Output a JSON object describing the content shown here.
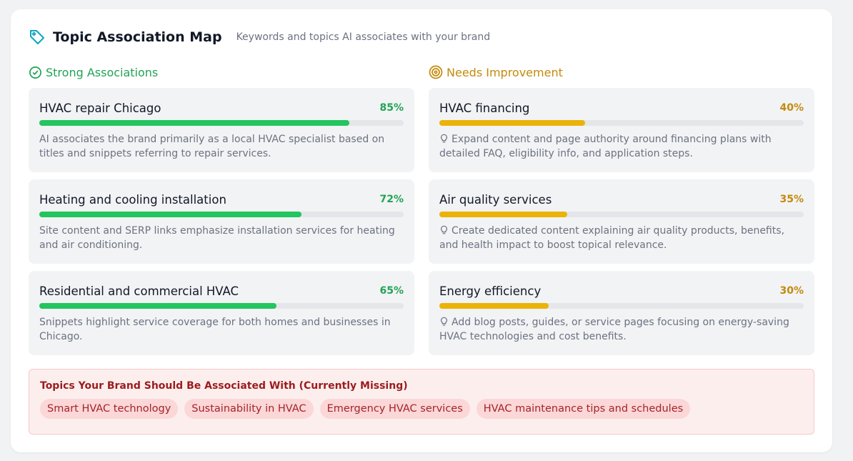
{
  "header": {
    "title": "Topic Association Map",
    "subtitle": "Keywords and topics AI associates with your brand"
  },
  "strong": {
    "title": "Strong Associations",
    "items": [
      {
        "topic": "HVAC repair Chicago",
        "value": 85,
        "value_label": "85%",
        "description": "AI associates the brand primarily as a local HVAC specialist based on titles and snippets referring to repair services."
      },
      {
        "topic": "Heating and cooling installation",
        "value": 72,
        "value_label": "72%",
        "description": "Site content and SERP links emphasize installation services for heating and air conditioning."
      },
      {
        "topic": "Residential and commercial HVAC",
        "value": 65,
        "value_label": "65%",
        "description": "Snippets highlight service coverage for both homes and businesses in Chicago."
      }
    ]
  },
  "improvement": {
    "title": "Needs Improvement",
    "items": [
      {
        "topic": "HVAC financing",
        "value": 40,
        "value_label": "40%",
        "description": "Expand content and page authority around financing plans with detailed FAQ, eligibility info, and application steps."
      },
      {
        "topic": "Air quality services",
        "value": 35,
        "value_label": "35%",
        "description": "Create dedicated content explaining air quality products, benefits, and health impact to boost topical relevance."
      },
      {
        "topic": "Energy efficiency",
        "value": 30,
        "value_label": "30%",
        "description": "Add blog posts, guides, or service pages focusing on energy-saving HVAC technologies and cost benefits."
      }
    ]
  },
  "missing": {
    "title": "Topics Your Brand Should Be Associated With (Currently Missing)",
    "tags": [
      "Smart HVAC technology",
      "Sustainability in HVAC",
      "Emergency HVAC services",
      "HVAC maintenance tips and schedules"
    ]
  }
}
